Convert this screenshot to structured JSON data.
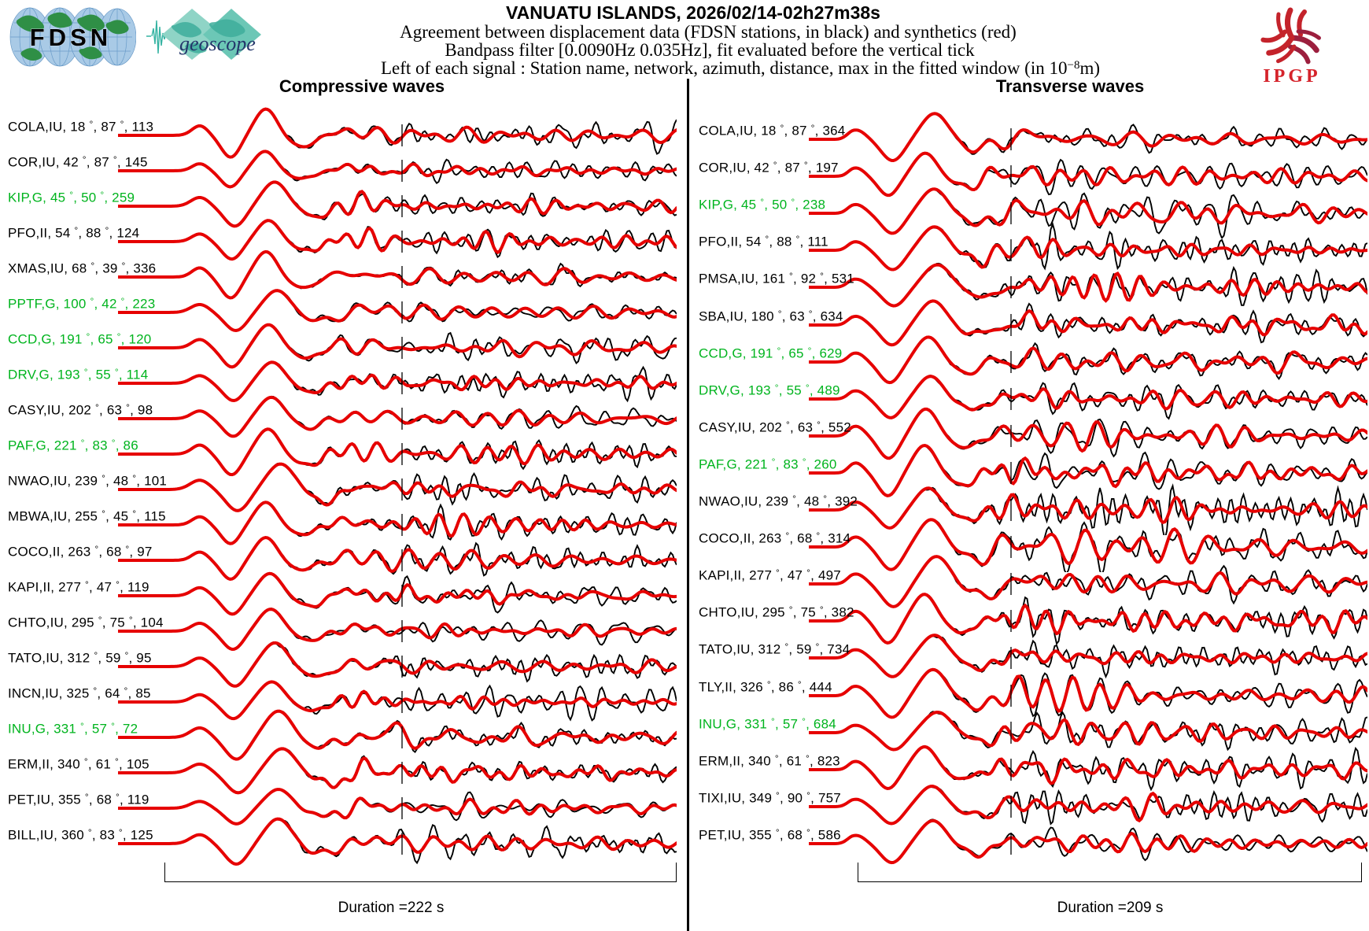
{
  "header": {
    "title": "VANUATU ISLANDS, 2026/02/14-02h27m38s",
    "subtitle1": "Agreement between displacement data (FDSN stations, in black) and synthetics (red)",
    "subtitle2": "Bandpass filter [0.0090Hz 0.035Hz], fit evaluated before the vertical tick",
    "subtitle3_pre": "Left of each signal : Station name, network, azimuth, distance, max in the fitted window (in 10",
    "subtitle3_sup": "−8",
    "subtitle3_post": "m)",
    "logos": {
      "fdsn": "FDSN",
      "geoscope": "geoscope",
      "ipgp": "IPGP"
    }
  },
  "chart_data": {
    "type": "line",
    "subtype": "seismogram montage: observed displacement (black) vs synthetic (red), one trace per station",
    "legend": {
      "black": "FDSN station displacement data",
      "red": "synthetics"
    },
    "colors": {
      "data": "#000000",
      "synthetic": "#e60000",
      "geoscope_station_label": "#00b41e",
      "fdsn_station_label": "#000000"
    },
    "label_format": "Station name, network, azimuth (deg), distance (deg), max in fitted window (1e-8 m)",
    "panels": [
      {
        "title": "Compressive waves",
        "duration_label": "Duration =222 s",
        "stations": [
          {
            "station": "COLA",
            "network": "IU",
            "azimuth": 18,
            "distance": 87,
            "max": 113,
            "green": false
          },
          {
            "station": "COR",
            "network": "IU",
            "azimuth": 42,
            "distance": 87,
            "max": 145,
            "green": false
          },
          {
            "station": "KIP",
            "network": "G",
            "azimuth": 45,
            "distance": 50,
            "max": 259,
            "green": true
          },
          {
            "station": "PFO",
            "network": "II",
            "azimuth": 54,
            "distance": 88,
            "max": 124,
            "green": false
          },
          {
            "station": "XMAS",
            "network": "IU",
            "azimuth": 68,
            "distance": 39,
            "max": 336,
            "green": false
          },
          {
            "station": "PPTF",
            "network": "G",
            "azimuth": 100,
            "distance": 42,
            "max": 223,
            "green": true
          },
          {
            "station": "CCD",
            "network": "G",
            "azimuth": 191,
            "distance": 65,
            "max": 120,
            "green": true
          },
          {
            "station": "DRV",
            "network": "G",
            "azimuth": 193,
            "distance": 55,
            "max": 114,
            "green": true
          },
          {
            "station": "CASY",
            "network": "IU",
            "azimuth": 202,
            "distance": 63,
            "max": 98,
            "green": false
          },
          {
            "station": "PAF",
            "network": "G",
            "azimuth": 221,
            "distance": 83,
            "max": 86,
            "green": true
          },
          {
            "station": "NWAO",
            "network": "IU",
            "azimuth": 239,
            "distance": 48,
            "max": 101,
            "green": false
          },
          {
            "station": "MBWA",
            "network": "IU",
            "azimuth": 255,
            "distance": 45,
            "max": 115,
            "green": false
          },
          {
            "station": "COCO",
            "network": "II",
            "azimuth": 263,
            "distance": 68,
            "max": 97,
            "green": false
          },
          {
            "station": "KAPI",
            "network": "II",
            "azimuth": 277,
            "distance": 47,
            "max": 119,
            "green": false
          },
          {
            "station": "CHTO",
            "network": "IU",
            "azimuth": 295,
            "distance": 75,
            "max": 104,
            "green": false
          },
          {
            "station": "TATO",
            "network": "IU",
            "azimuth": 312,
            "distance": 59,
            "max": 95,
            "green": false
          },
          {
            "station": "INCN",
            "network": "IU",
            "azimuth": 325,
            "distance": 64,
            "max": 85,
            "green": false
          },
          {
            "station": "INU",
            "network": "G",
            "azimuth": 331,
            "distance": 57,
            "max": 72,
            "green": true
          },
          {
            "station": "ERM",
            "network": "II",
            "azimuth": 340,
            "distance": 61,
            "max": 105,
            "green": false
          },
          {
            "station": "PET",
            "network": "IU",
            "azimuth": 355,
            "distance": 68,
            "max": 119,
            "green": false
          },
          {
            "station": "BILL",
            "network": "IU",
            "azimuth": 360,
            "distance": 83,
            "max": 125,
            "green": false
          }
        ]
      },
      {
        "title": "Transverse waves",
        "duration_label": "Duration =209 s",
        "stations": [
          {
            "station": "COLA",
            "network": "IU",
            "azimuth": 18,
            "distance": 87,
            "max": 364,
            "green": false
          },
          {
            "station": "COR",
            "network": "IU",
            "azimuth": 42,
            "distance": 87,
            "max": 197,
            "green": false
          },
          {
            "station": "KIP",
            "network": "G",
            "azimuth": 45,
            "distance": 50,
            "max": 238,
            "green": true
          },
          {
            "station": "PFO",
            "network": "II",
            "azimuth": 54,
            "distance": 88,
            "max": 111,
            "green": false
          },
          {
            "station": "PMSA",
            "network": "IU",
            "azimuth": 161,
            "distance": 92,
            "max": 531,
            "green": false
          },
          {
            "station": "SBA",
            "network": "IU",
            "azimuth": 180,
            "distance": 63,
            "max": 634,
            "green": false
          },
          {
            "station": "CCD",
            "network": "G",
            "azimuth": 191,
            "distance": 65,
            "max": 629,
            "green": true
          },
          {
            "station": "DRV",
            "network": "G",
            "azimuth": 193,
            "distance": 55,
            "max": 489,
            "green": true
          },
          {
            "station": "CASY",
            "network": "IU",
            "azimuth": 202,
            "distance": 63,
            "max": 552,
            "green": false
          },
          {
            "station": "PAF",
            "network": "G",
            "azimuth": 221,
            "distance": 83,
            "max": 260,
            "green": true
          },
          {
            "station": "NWAO",
            "network": "IU",
            "azimuth": 239,
            "distance": 48,
            "max": 392,
            "green": false
          },
          {
            "station": "COCO",
            "network": "II",
            "azimuth": 263,
            "distance": 68,
            "max": 314,
            "green": false
          },
          {
            "station": "KAPI",
            "network": "II",
            "azimuth": 277,
            "distance": 47,
            "max": 497,
            "green": false
          },
          {
            "station": "CHTO",
            "network": "IU",
            "azimuth": 295,
            "distance": 75,
            "max": 382,
            "green": false
          },
          {
            "station": "TATO",
            "network": "IU",
            "azimuth": 312,
            "distance": 59,
            "max": 734,
            "green": false
          },
          {
            "station": "TLY",
            "network": "II",
            "azimuth": 326,
            "distance": 86,
            "max": 444,
            "green": false
          },
          {
            "station": "INU",
            "network": "G",
            "azimuth": 331,
            "distance": 57,
            "max": 684,
            "green": true
          },
          {
            "station": "ERM",
            "network": "II",
            "azimuth": 340,
            "distance": 61,
            "max": 823,
            "green": false
          },
          {
            "station": "TIXI",
            "network": "IU",
            "azimuth": 349,
            "distance": 90,
            "max": 757,
            "green": false
          },
          {
            "station": "PET",
            "network": "IU",
            "azimuth": 355,
            "distance": 68,
            "max": 586,
            "green": false
          }
        ]
      }
    ]
  }
}
